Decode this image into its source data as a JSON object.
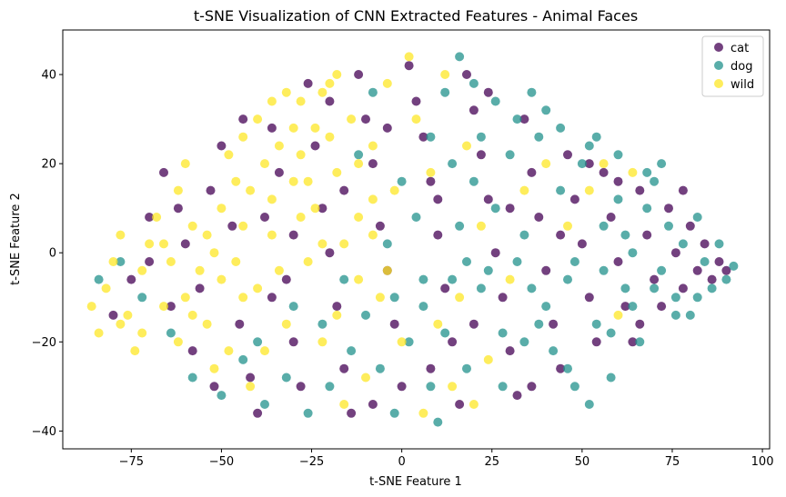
{
  "chart_data": {
    "type": "scatter",
    "title": "t-SNE Visualization of CNN Extracted Features - Animal Faces",
    "xlabel": "t-SNE Feature 1",
    "ylabel": "t-SNE Feature 2",
    "xlim": [
      -94,
      102
    ],
    "ylim": [
      -44,
      50
    ],
    "xticks": [
      -75,
      -50,
      -25,
      0,
      25,
      50,
      75,
      100
    ],
    "yticks": [
      -40,
      -20,
      0,
      20,
      40
    ],
    "xtick_labels": [
      "−75",
      "−50",
      "−25",
      "0",
      "25",
      "50",
      "75",
      "100"
    ],
    "ytick_labels": [
      "−40",
      "−20",
      "0",
      "20",
      "40"
    ],
    "grid": false,
    "legend_position": "top-right",
    "series": [
      {
        "name": "cat",
        "color": "#440154",
        "points": [
          [
            -80,
            -14
          ],
          [
            -75,
            -6
          ],
          [
            -70,
            -2
          ],
          [
            -66,
            18
          ],
          [
            -62,
            10
          ],
          [
            -60,
            2
          ],
          [
            -56,
            -8
          ],
          [
            -53,
            14
          ],
          [
            -50,
            24
          ],
          [
            -47,
            6
          ],
          [
            -45,
            -16
          ],
          [
            -42,
            -28
          ],
          [
            -40,
            -36
          ],
          [
            -38,
            8
          ],
          [
            -36,
            28
          ],
          [
            -34,
            18
          ],
          [
            -32,
            -6
          ],
          [
            -30,
            -20
          ],
          [
            -28,
            -30
          ],
          [
            -26,
            38
          ],
          [
            -24,
            24
          ],
          [
            -22,
            10
          ],
          [
            -20,
            0
          ],
          [
            -18,
            -12
          ],
          [
            -16,
            -26
          ],
          [
            -14,
            -36
          ],
          [
            -12,
            40
          ],
          [
            -10,
            30
          ],
          [
            -8,
            20
          ],
          [
            -6,
            6
          ],
          [
            -4,
            -4
          ],
          [
            -2,
            -16
          ],
          [
            0,
            -30
          ],
          [
            2,
            42
          ],
          [
            4,
            34
          ],
          [
            6,
            26
          ],
          [
            8,
            16
          ],
          [
            10,
            4
          ],
          [
            12,
            -8
          ],
          [
            14,
            -20
          ],
          [
            16,
            -34
          ],
          [
            18,
            40
          ],
          [
            20,
            32
          ],
          [
            22,
            22
          ],
          [
            24,
            12
          ],
          [
            26,
            0
          ],
          [
            28,
            -10
          ],
          [
            30,
            -22
          ],
          [
            32,
            -32
          ],
          [
            34,
            30
          ],
          [
            36,
            18
          ],
          [
            38,
            8
          ],
          [
            40,
            -4
          ],
          [
            42,
            -16
          ],
          [
            44,
            -26
          ],
          [
            46,
            22
          ],
          [
            48,
            12
          ],
          [
            50,
            2
          ],
          [
            52,
            -10
          ],
          [
            54,
            -20
          ],
          [
            56,
            18
          ],
          [
            58,
            8
          ],
          [
            60,
            -2
          ],
          [
            62,
            -12
          ],
          [
            64,
            -20
          ],
          [
            66,
            14
          ],
          [
            68,
            4
          ],
          [
            70,
            -6
          ],
          [
            72,
            -12
          ],
          [
            74,
            10
          ],
          [
            76,
            0
          ],
          [
            78,
            -8
          ],
          [
            80,
            6
          ],
          [
            82,
            -4
          ],
          [
            84,
            2
          ],
          [
            86,
            -6
          ],
          [
            88,
            -2
          ],
          [
            90,
            -4
          ],
          [
            -58,
            -22
          ],
          [
            -44,
            30
          ],
          [
            -30,
            4
          ],
          [
            -16,
            14
          ],
          [
            -4,
            28
          ],
          [
            8,
            -26
          ],
          [
            20,
            -16
          ],
          [
            36,
            -30
          ],
          [
            52,
            20
          ],
          [
            66,
            -16
          ],
          [
            -70,
            8
          ],
          [
            -36,
            -10
          ],
          [
            -8,
            -34
          ],
          [
            24,
            36
          ],
          [
            44,
            4
          ],
          [
            60,
            16
          ],
          [
            78,
            14
          ],
          [
            -52,
            -30
          ],
          [
            -20,
            34
          ],
          [
            10,
            12
          ],
          [
            30,
            10
          ],
          [
            -64,
            -12
          ]
        ]
      },
      {
        "name": "dog",
        "color": "#21918c",
        "points": [
          [
            -84,
            -6
          ],
          [
            -78,
            -2
          ],
          [
            -72,
            -10
          ],
          [
            -64,
            -18
          ],
          [
            -58,
            -28
          ],
          [
            -50,
            -32
          ],
          [
            -44,
            -24
          ],
          [
            -38,
            -34
          ],
          [
            -32,
            -28
          ],
          [
            -26,
            -36
          ],
          [
            -20,
            -30
          ],
          [
            -14,
            -22
          ],
          [
            -10,
            -14
          ],
          [
            -6,
            -26
          ],
          [
            -2,
            -36
          ],
          [
            2,
            -20
          ],
          [
            6,
            -12
          ],
          [
            8,
            -30
          ],
          [
            10,
            -38
          ],
          [
            12,
            -18
          ],
          [
            14,
            -6
          ],
          [
            16,
            6
          ],
          [
            18,
            -26
          ],
          [
            20,
            16
          ],
          [
            22,
            26
          ],
          [
            24,
            -4
          ],
          [
            26,
            10
          ],
          [
            28,
            -18
          ],
          [
            30,
            22
          ],
          [
            32,
            30
          ],
          [
            34,
            4
          ],
          [
            36,
            -8
          ],
          [
            38,
            26
          ],
          [
            40,
            32
          ],
          [
            42,
            -22
          ],
          [
            44,
            14
          ],
          [
            46,
            -6
          ],
          [
            48,
            -30
          ],
          [
            50,
            20
          ],
          [
            52,
            24
          ],
          [
            54,
            -16
          ],
          [
            56,
            6
          ],
          [
            58,
            -28
          ],
          [
            60,
            12
          ],
          [
            62,
            -8
          ],
          [
            64,
            0
          ],
          [
            66,
            -20
          ],
          [
            68,
            10
          ],
          [
            70,
            16
          ],
          [
            72,
            -4
          ],
          [
            74,
            6
          ],
          [
            76,
            -10
          ],
          [
            78,
            2
          ],
          [
            80,
            -14
          ],
          [
            82,
            8
          ],
          [
            84,
            -2
          ],
          [
            86,
            -8
          ],
          [
            88,
            2
          ],
          [
            90,
            -6
          ],
          [
            92,
            -3
          ],
          [
            0,
            16
          ],
          [
            4,
            8
          ],
          [
            -4,
            2
          ],
          [
            8,
            26
          ],
          [
            12,
            36
          ],
          [
            16,
            44
          ],
          [
            20,
            38
          ],
          [
            -8,
            36
          ],
          [
            -12,
            22
          ],
          [
            -16,
            -6
          ],
          [
            28,
            -30
          ],
          [
            34,
            -20
          ],
          [
            40,
            -12
          ],
          [
            46,
            -26
          ],
          [
            52,
            -34
          ],
          [
            58,
            -18
          ],
          [
            64,
            -12
          ],
          [
            70,
            -8
          ],
          [
            76,
            -14
          ],
          [
            82,
            -10
          ],
          [
            26,
            34
          ],
          [
            36,
            36
          ],
          [
            44,
            28
          ],
          [
            54,
            26
          ],
          [
            60,
            22
          ],
          [
            68,
            18
          ],
          [
            72,
            20
          ],
          [
            -40,
            -20
          ],
          [
            -30,
            -12
          ],
          [
            -22,
            -16
          ],
          [
            18,
            -2
          ],
          [
            32,
            -2
          ],
          [
            48,
            -2
          ],
          [
            56,
            -4
          ],
          [
            62,
            4
          ],
          [
            38,
            -16
          ],
          [
            22,
            -8
          ],
          [
            14,
            20
          ],
          [
            6,
            -6
          ],
          [
            -2,
            -10
          ]
        ]
      },
      {
        "name": "wild",
        "color": "#fde725",
        "points": [
          [
            -86,
            -12
          ],
          [
            -84,
            -18
          ],
          [
            -82,
            -8
          ],
          [
            -80,
            -2
          ],
          [
            -78,
            4
          ],
          [
            -76,
            -14
          ],
          [
            -74,
            -22
          ],
          [
            -72,
            -4
          ],
          [
            -70,
            2
          ],
          [
            -68,
            8
          ],
          [
            -66,
            -12
          ],
          [
            -64,
            -2
          ],
          [
            -62,
            14
          ],
          [
            -60,
            20
          ],
          [
            -58,
            6
          ],
          [
            -56,
            -4
          ],
          [
            -54,
            -16
          ],
          [
            -52,
            -26
          ],
          [
            -50,
            10
          ],
          [
            -48,
            22
          ],
          [
            -46,
            -2
          ],
          [
            -44,
            -10
          ],
          [
            -42,
            14
          ],
          [
            -40,
            30
          ],
          [
            -38,
            -22
          ],
          [
            -36,
            4
          ],
          [
            -34,
            24
          ],
          [
            -32,
            36
          ],
          [
            -30,
            16
          ],
          [
            -28,
            8
          ],
          [
            -26,
            -2
          ],
          [
            -24,
            28
          ],
          [
            -22,
            -20
          ],
          [
            -20,
            38
          ],
          [
            -18,
            18
          ],
          [
            -16,
            -34
          ],
          [
            -14,
            30
          ],
          [
            -12,
            8
          ],
          [
            -10,
            -28
          ],
          [
            -8,
            24
          ],
          [
            -6,
            -10
          ],
          [
            -4,
            38
          ],
          [
            -2,
            14
          ],
          [
            0,
            -20
          ],
          [
            2,
            44
          ],
          [
            4,
            30
          ],
          [
            6,
            -36
          ],
          [
            8,
            18
          ],
          [
            10,
            -16
          ],
          [
            12,
            40
          ],
          [
            14,
            -30
          ],
          [
            16,
            -10
          ],
          [
            18,
            24
          ],
          [
            20,
            -34
          ],
          [
            22,
            6
          ],
          [
            24,
            -24
          ],
          [
            30,
            -6
          ],
          [
            34,
            14
          ],
          [
            40,
            20
          ],
          [
            46,
            6
          ],
          [
            52,
            14
          ],
          [
            56,
            20
          ],
          [
            60,
            -14
          ],
          [
            64,
            18
          ],
          [
            -60,
            -10
          ],
          [
            -54,
            4
          ],
          [
            -50,
            -6
          ],
          [
            -46,
            16
          ],
          [
            -42,
            -30
          ],
          [
            -38,
            20
          ],
          [
            -34,
            -4
          ],
          [
            -30,
            28
          ],
          [
            -26,
            16
          ],
          [
            -22,
            2
          ],
          [
            -18,
            -14
          ],
          [
            -12,
            20
          ],
          [
            -8,
            4
          ],
          [
            -4,
            -4
          ],
          [
            -78,
            -16
          ],
          [
            -72,
            -18
          ],
          [
            -66,
            2
          ],
          [
            -62,
            -20
          ],
          [
            -58,
            -14
          ],
          [
            -52,
            0
          ],
          [
            -48,
            -22
          ],
          [
            -44,
            6
          ],
          [
            -40,
            -8
          ],
          [
            -36,
            12
          ],
          [
            -32,
            -16
          ],
          [
            -28,
            22
          ],
          [
            -24,
            10
          ],
          [
            -20,
            26
          ],
          [
            -16,
            2
          ],
          [
            -12,
            -6
          ],
          [
            -8,
            12
          ],
          [
            -44,
            26
          ],
          [
            -36,
            34
          ],
          [
            -28,
            34
          ],
          [
            -22,
            36
          ],
          [
            -18,
            40
          ]
        ]
      }
    ]
  }
}
